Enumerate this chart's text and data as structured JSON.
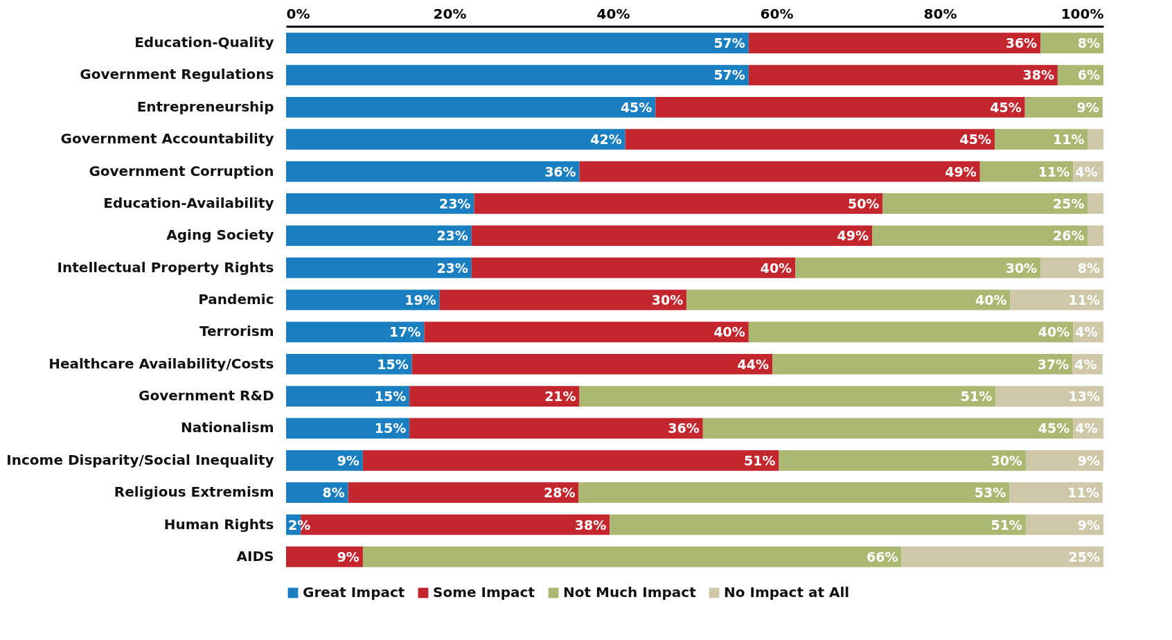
{
  "chart_data": {
    "type": "bar",
    "orientation": "horizontal",
    "stacked": true,
    "legend": "bottom",
    "categories": [
      "Education-Quality",
      "Government Regulations",
      "Entrepreneurship",
      "Government Accountability",
      "Government Corruption",
      "Education-Availability",
      "Aging Society",
      "Intellectual Property Rights",
      "Pandemic",
      "Terrorism",
      "Healthcare Availability/Costs",
      "Government R&D",
      "Nationalism",
      "Income Disparity/Social Inequality",
      "Religious Extremism",
      "Human Rights",
      "AIDS"
    ],
    "xlim": [
      0,
      100
    ],
    "xticks": [
      {
        "value": 0,
        "label": "0%"
      },
      {
        "value": 20,
        "label": "20%"
      },
      {
        "value": 40,
        "label": "40%"
      },
      {
        "value": 60,
        "label": "60%"
      },
      {
        "value": 80,
        "label": "80%"
      },
      {
        "value": 100,
        "label": "100%"
      }
    ],
    "series": [
      {
        "name": "Great Impact",
        "color": "#1a7fc1",
        "values": [
          56.6,
          56.6,
          45.2,
          41.5,
          35.9,
          23.0,
          22.7,
          22.7,
          18.8,
          16.9,
          15.4,
          15.1,
          15.1,
          9.4,
          7.6,
          1.8,
          0
        ],
        "value_labels": [
          "57%",
          "57%",
          "45%",
          "42%",
          "36%",
          "23%",
          "23%",
          "23%",
          "19%",
          "17%",
          "15%",
          "15%",
          "15%",
          "9%",
          "8%",
          "2%",
          null
        ]
      },
      {
        "name": "Some Impact",
        "color": "#c4262e",
        "values": [
          35.7,
          37.8,
          45.2,
          45.2,
          49.0,
          50.0,
          49.0,
          39.6,
          30.2,
          39.7,
          44.1,
          20.8,
          35.9,
          50.9,
          28.2,
          37.8,
          9.4
        ],
        "value_labels": [
          "36%",
          "38%",
          "45%",
          "45%",
          "49%",
          "50%",
          "49%",
          "40%",
          "30%",
          "40%",
          "44%",
          "21%",
          "36%",
          "51%",
          "28%",
          "38%",
          "9%"
        ]
      },
      {
        "name": "Not Much Impact",
        "color": "#abb872",
        "values": [
          7.7,
          5.6,
          9.5,
          11.4,
          11.4,
          25.1,
          26.4,
          30.0,
          39.6,
          39.7,
          36.7,
          50.9,
          45.3,
          30.2,
          52.7,
          50.9,
          65.9
        ],
        "value_labels": [
          "8%",
          "6%",
          "9%",
          "11%",
          "11%",
          "25%",
          "26%",
          "30%",
          "40%",
          "40%",
          "37%",
          "51%",
          "45%",
          "30%",
          "53%",
          "51%",
          "66%"
        ]
      },
      {
        "name": "No Impact at All",
        "color": "#cfc8a8",
        "values": [
          0,
          0,
          0,
          1.9,
          3.7,
          1.9,
          1.9,
          7.7,
          11.4,
          3.7,
          3.7,
          13.2,
          3.7,
          9.5,
          11.4,
          9.5,
          24.7
        ],
        "value_labels": [
          null,
          null,
          null,
          null,
          "4%",
          null,
          null,
          "8%",
          "11%",
          "4%",
          "4%",
          "13%",
          "4%",
          "9%",
          "11%",
          "9%",
          "25%"
        ]
      }
    ]
  }
}
